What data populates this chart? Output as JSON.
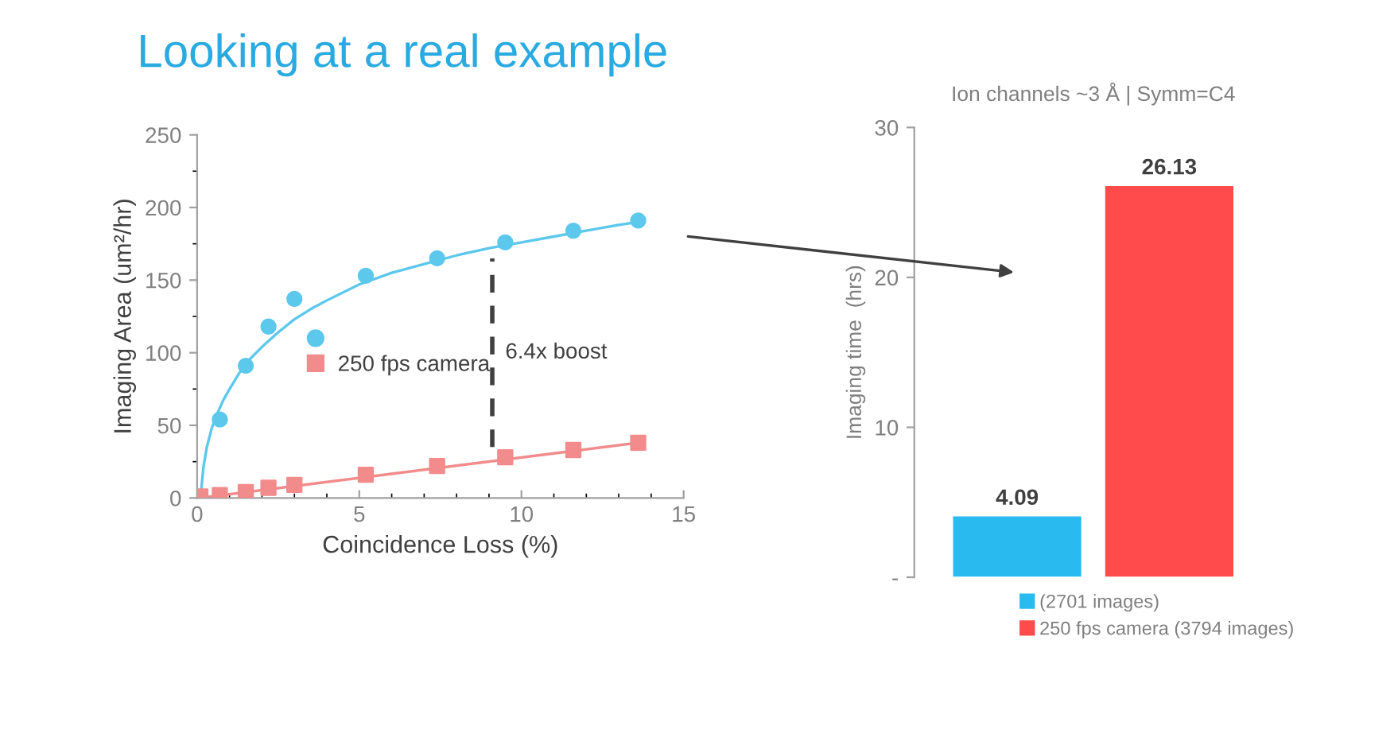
{
  "chart_data": [
    {
      "type": "scatter",
      "title": "Looking at a real example",
      "xlabel": "Coincidence Loss (%)",
      "ylabel": "Imaging Area (um²/hr)",
      "xlim": [
        0,
        15
      ],
      "xticks": [
        0,
        5,
        10,
        15
      ],
      "ylim": [
        0,
        250
      ],
      "yticks": [
        0,
        50,
        100,
        150,
        200,
        250
      ],
      "grid": false,
      "legend": "center",
      "series": [
        {
          "color": "#5bc8ec",
          "marker": "circle",
          "x": [
            0.1,
            0.7,
            1.5,
            2.2,
            3.0,
            5.2,
            7.4,
            9.5,
            11.6,
            13.6
          ],
          "values": [
            0,
            54,
            91,
            118,
            137,
            153,
            165,
            176,
            184,
            191
          ]
        },
        {
          "name": "250 fps camera",
          "color": "#f28b8b",
          "marker": "square",
          "x": [
            0.1,
            0.7,
            1.5,
            2.2,
            3.0,
            5.2,
            7.4,
            9.5,
            11.6,
            13.6
          ],
          "values": [
            1,
            2,
            4,
            7,
            9,
            16,
            22,
            28,
            33,
            38
          ]
        },
        {
          "type": "line",
          "color": "#5bc8ec",
          "x": [
            0.1,
            0.2,
            0.3,
            0.45,
            0.6,
            0.8,
            1.0,
            1.3,
            1.6,
            2.0,
            2.5,
            3.0,
            3.5,
            4,
            5,
            6,
            7,
            8,
            9,
            10,
            11,
            12,
            13,
            13.6
          ],
          "values": [
            0,
            22,
            35,
            48,
            57,
            67,
            75,
            86,
            95,
            104,
            114,
            123,
            130,
            136,
            147,
            155,
            161,
            167,
            172,
            176,
            180,
            184,
            188,
            190
          ]
        },
        {
          "type": "line",
          "color": "#f28b8b",
          "x": [
            0.1,
            13.6
          ],
          "values": [
            0,
            38
          ]
        },
        {
          "type": "line",
          "color": "#404040",
          "line_style": "dashed",
          "x": [
            9.1,
            9.1
          ],
          "values": [
            35,
            165
          ]
        }
      ],
      "annotations": [
        {
          "text": "6.4x boost",
          "x": 9.1,
          "y": 100
        }
      ]
    },
    {
      "type": "bar",
      "title": "Ion channels ~3 Å | Symm=C4",
      "ylabel": "Imaging time  (hrs)",
      "categories": [
        null
      ],
      "ylim": [
        0,
        30
      ],
      "yticks": [
        {
          "value": 0,
          "label": "-"
        },
        10,
        20,
        30
      ],
      "data_labels": true,
      "legend": "bottom",
      "grid": false,
      "series": [
        {
          "name": "(2701 images)",
          "color": "#29bbef",
          "values": [
            4.09
          ]
        },
        {
          "name": "250 fps camera (3794 images)",
          "color": "#ff4b4b",
          "values": [
            26.13
          ]
        }
      ]
    }
  ]
}
